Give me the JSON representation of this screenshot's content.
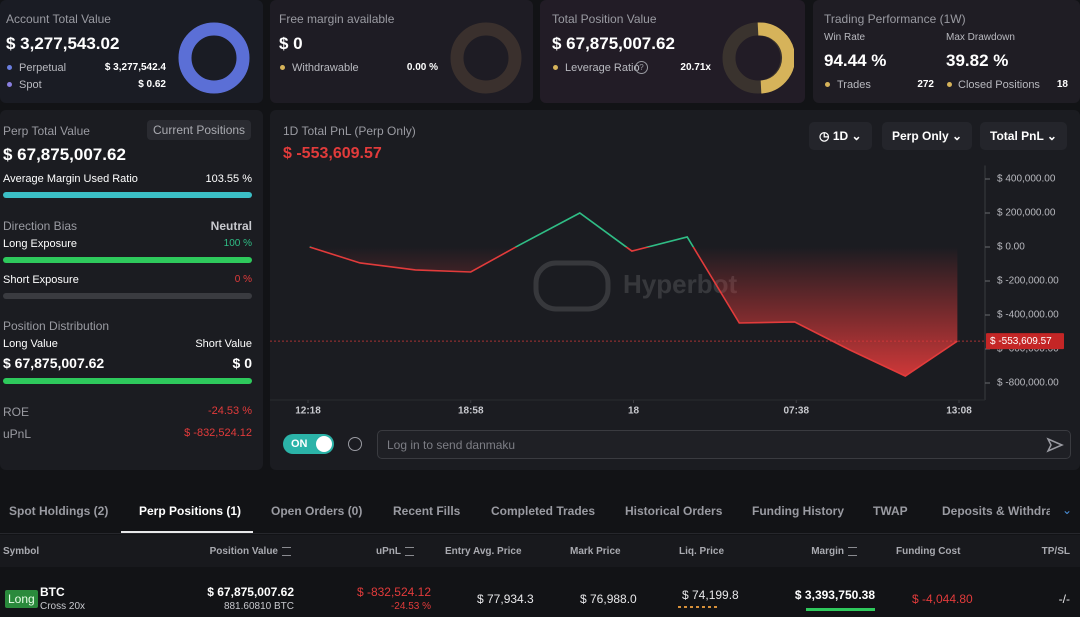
{
  "account": {
    "title": "Account Total Value",
    "value": "$ 3,277,543.02",
    "perpetual_label": "Perpetual",
    "perpetual": "$ 3,277,542.4",
    "spot_label": "Spot",
    "spot": "$ 0.62"
  },
  "margin": {
    "title": "Free margin available",
    "value": "$ 0",
    "withdrawable_label": "Withdrawable",
    "withdrawable": "0.00 %"
  },
  "position": {
    "title": "Total Position Value",
    "value": "$ 67,875,007.62",
    "leverage_label": "Leverage Ratio",
    "leverage": "20.71x"
  },
  "performance": {
    "title": "Trading Performance (1W)",
    "win_rate_label": "Win Rate",
    "win_rate": "94.44 %",
    "drawdown_label": "Max Drawdown",
    "drawdown": "39.82 %",
    "trades_label": "Trades",
    "trades": "272",
    "closed_label": "Closed Positions",
    "closed": "18"
  },
  "perp": {
    "title": "Perp Total Value",
    "button": "Current Positions",
    "value": "$ 67,875,007.62",
    "margin_ratio_label": "Average Margin Used Ratio",
    "margin_ratio": "103.55 %",
    "bias_label": "Direction Bias",
    "bias": "Neutral",
    "long_label": "Long Exposure",
    "long": "100 %",
    "short_label": "Short Exposure",
    "short": "0 %",
    "distribution_label": "Position Distribution",
    "long_value_label": "Long Value",
    "short_value_label": "Short Value",
    "long_value": "$ 67,875,007.62",
    "short_value": "$ 0",
    "roe_label": "ROE",
    "roe": "-24.53 %",
    "upnl_label": "uPnL",
    "upnl": "$ -832,524.12"
  },
  "chart_data": {
    "type": "line",
    "title": "1D Total PnL (Perp Only)",
    "total_pnl": "$ -553,609.57",
    "watermark": "Hyperbot",
    "x": [
      0.01,
      0.32,
      0.66,
      1.0,
      1.3,
      1.67,
      1.99,
      2.33,
      2.65,
      2.99,
      3.33,
      3.67,
      3.99
    ],
    "values": [
      0,
      -94000,
      -135000,
      -147000,
      12000,
      200000,
      -24000,
      59000,
      -447000,
      -441000,
      -606000,
      -759000,
      -553609.57
    ],
    "xlim": [
      0,
      4
    ],
    "xticks": [
      {
        "value": 0,
        "label": "12:18"
      },
      {
        "value": 1,
        "label": "18:58"
      },
      {
        "value": 2,
        "label": "18"
      },
      {
        "value": 3,
        "label": "07:38"
      },
      {
        "value": 4,
        "label": "13:08"
      }
    ],
    "ylim": [
      -900000,
      450000
    ],
    "yticks": [
      {
        "value": 400000,
        "label": "$ 400,000.00"
      },
      {
        "value": 200000,
        "label": "$ 200,000.00"
      },
      {
        "value": 0,
        "label": "$ 0.00"
      },
      {
        "value": -200000,
        "label": "$ -200,000.00"
      },
      {
        "value": -400000,
        "label": "$ -400,000.00"
      },
      {
        "value": -600000,
        "label": "$ -600,000.00"
      },
      {
        "value": -800000,
        "label": "$ -800,000.00"
      }
    ],
    "up_color": "#2fbd85",
    "down_color": "#e23b3b"
  },
  "controls": {
    "interval": "1D",
    "scope": "Perp Only",
    "metric": "Total PnL",
    "toggle": "ON",
    "danmaku_placeholder": "Log in to send danmaku"
  },
  "tabs": [
    "Spot Holdings (2)",
    "Perp Positions (1)",
    "Open Orders (0)",
    "Recent Fills",
    "Completed Trades",
    "Historical Orders",
    "Funding History",
    "TWAP",
    "Deposits & Withdrawals"
  ],
  "active_tab": 1,
  "table": {
    "headers": [
      "Symbol",
      "Position Value",
      "uPnL",
      "Entry Avg. Price",
      "Mark Price",
      "Liq. Price",
      "Margin",
      "Funding Cost",
      "TP/SL"
    ],
    "rows": [
      {
        "side": "Long",
        "symbol": "BTC",
        "mode": "Cross 20x",
        "position_value": "$ 67,875,007.62",
        "size": "881.60810 BTC",
        "upnl": "$ -832,524.12",
        "upnl_pct": "-24.53 %",
        "entry": "$ 77,934.3",
        "mark": "$ 76,988.0",
        "liq": "$ 74,199.8",
        "margin": "$ 3,393,750.38",
        "funding": "$ -4,044.80",
        "tpsl": "-/-"
      }
    ]
  }
}
